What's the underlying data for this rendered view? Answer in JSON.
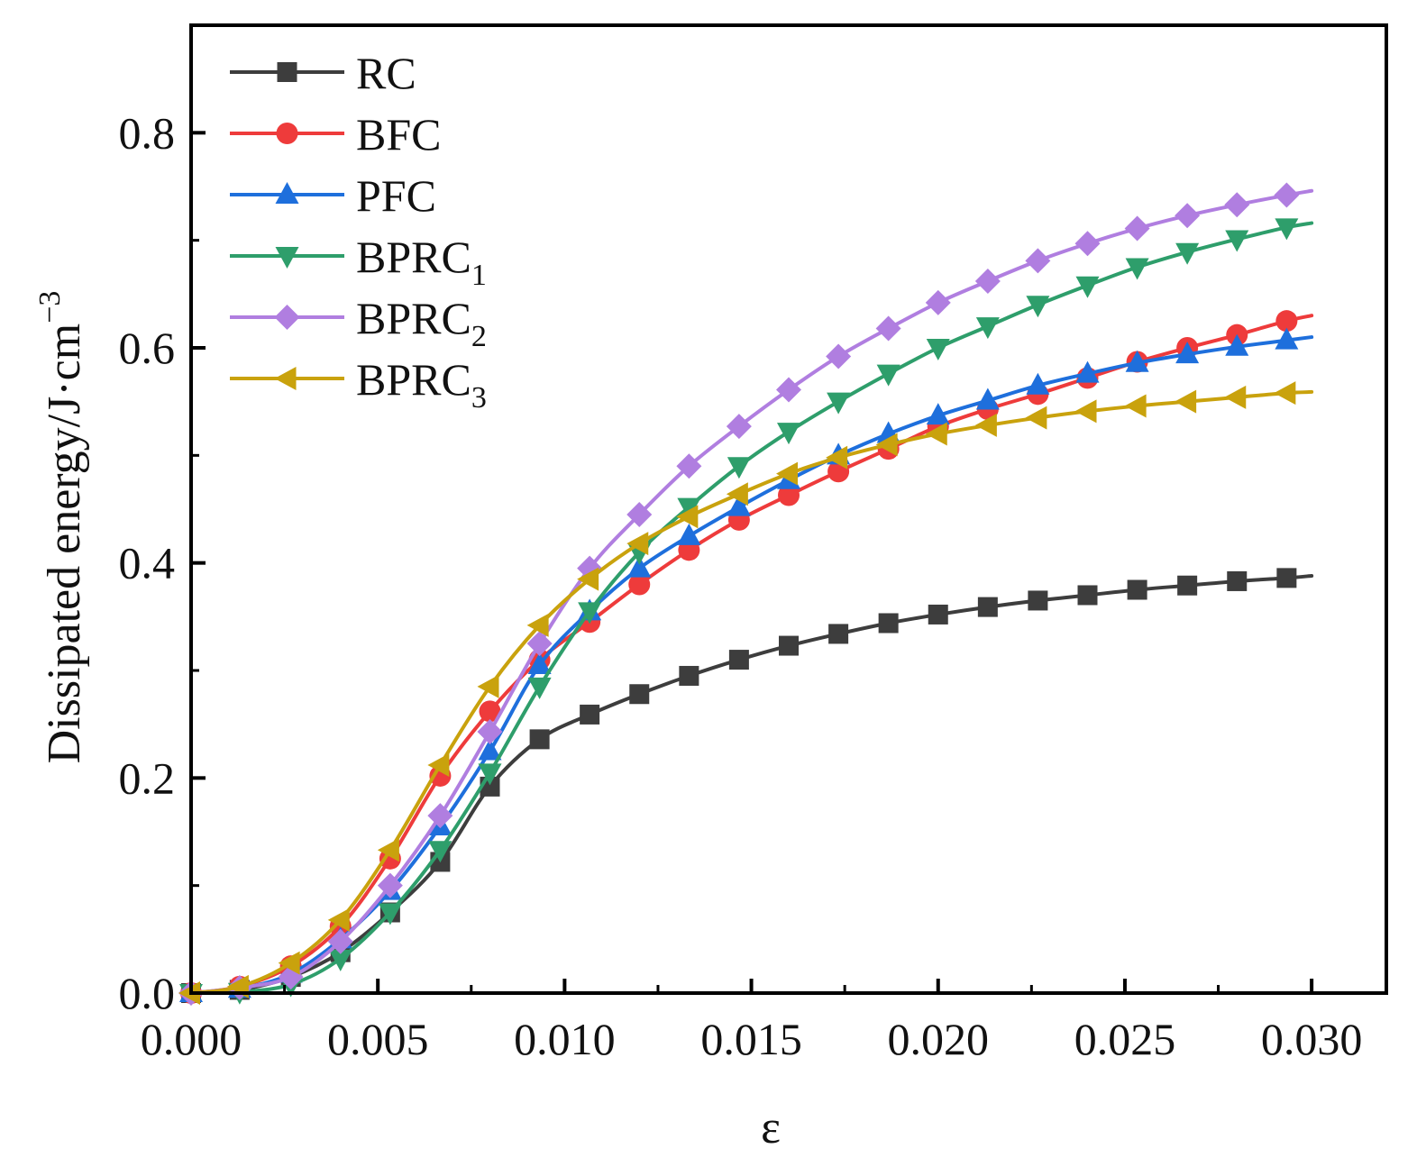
{
  "chart_data": {
    "type": "line",
    "title": "",
    "xlabel": "ε",
    "ylabel": "Dissipated energy/J·cm",
    "ylabel_sup": "−3",
    "xlim": [
      0.0,
      0.032
    ],
    "ylim": [
      0.0,
      0.9
    ],
    "x_ticks": [
      0.0,
      0.005,
      0.01,
      0.015,
      0.02,
      0.025,
      0.03
    ],
    "x_tick_labels": [
      "0.000",
      "0.005",
      "0.010",
      "0.015",
      "0.020",
      "0.025",
      "0.030"
    ],
    "y_ticks": [
      0.0,
      0.2,
      0.4,
      0.6,
      0.8
    ],
    "y_tick_labels": [
      "0.0",
      "0.2",
      "0.4",
      "0.6",
      "0.8"
    ],
    "grid": false,
    "legend_position": "top-left",
    "x": [
      0.0,
      0.0013,
      0.00267,
      0.004,
      0.00533,
      0.00667,
      0.008,
      0.00933,
      0.01067,
      0.012,
      0.01333,
      0.01467,
      0.016,
      0.01733,
      0.01867,
      0.02,
      0.02133,
      0.02267,
      0.024,
      0.02533,
      0.02667,
      0.028,
      0.02933
    ],
    "curve_end_x": 0.03,
    "series": [
      {
        "name": "RC",
        "sub": "",
        "color": "#3d3d3d",
        "marker": "square",
        "values": [
          0.0,
          0.003,
          0.015,
          0.038,
          0.075,
          0.122,
          0.192,
          0.236,
          0.259,
          0.278,
          0.295,
          0.31,
          0.323,
          0.334,
          0.344,
          0.352,
          0.359,
          0.365,
          0.37,
          0.375,
          0.379,
          0.383,
          0.386
        ],
        "end_value": 0.388
      },
      {
        "name": "BFC",
        "sub": "",
        "color": "#ee3b3b",
        "marker": "circle",
        "values": [
          0.0,
          0.006,
          0.025,
          0.062,
          0.125,
          0.202,
          0.262,
          0.31,
          0.345,
          0.38,
          0.412,
          0.44,
          0.463,
          0.485,
          0.506,
          0.527,
          0.543,
          0.557,
          0.572,
          0.587,
          0.6,
          0.612,
          0.625
        ],
        "end_value": 0.63
      },
      {
        "name": "PFC",
        "sub": "",
        "color": "#1e6fdc",
        "marker": "triangle-up",
        "values": [
          0.0,
          0.004,
          0.018,
          0.05,
          0.095,
          0.155,
          0.225,
          0.305,
          0.355,
          0.395,
          0.425,
          0.452,
          0.477,
          0.5,
          0.52,
          0.537,
          0.551,
          0.565,
          0.576,
          0.586,
          0.594,
          0.601,
          0.607
        ],
        "end_value": 0.61
      },
      {
        "name": "BPRC",
        "sub": "1",
        "color": "#2e9e6b",
        "marker": "triangle-down",
        "values": [
          0.0,
          0.001,
          0.008,
          0.032,
          0.075,
          0.133,
          0.205,
          0.285,
          0.355,
          0.41,
          0.452,
          0.49,
          0.522,
          0.55,
          0.576,
          0.6,
          0.62,
          0.64,
          0.658,
          0.675,
          0.689,
          0.701,
          0.712
        ],
        "end_value": 0.716
      },
      {
        "name": "BPRC",
        "sub": "2",
        "color": "#b07ee0",
        "marker": "diamond",
        "values": [
          0.0,
          0.005,
          0.015,
          0.048,
          0.1,
          0.165,
          0.243,
          0.325,
          0.395,
          0.445,
          0.49,
          0.527,
          0.561,
          0.592,
          0.618,
          0.642,
          0.662,
          0.681,
          0.697,
          0.711,
          0.723,
          0.733,
          0.742
        ],
        "end_value": 0.746
      },
      {
        "name": "BPRC",
        "sub": "3",
        "color": "#c9a20d",
        "marker": "triangle-left",
        "values": [
          0.0,
          0.006,
          0.028,
          0.068,
          0.133,
          0.212,
          0.285,
          0.342,
          0.385,
          0.418,
          0.443,
          0.464,
          0.483,
          0.498,
          0.51,
          0.52,
          0.528,
          0.535,
          0.541,
          0.546,
          0.55,
          0.554,
          0.558
        ],
        "end_value": 0.559
      }
    ]
  }
}
